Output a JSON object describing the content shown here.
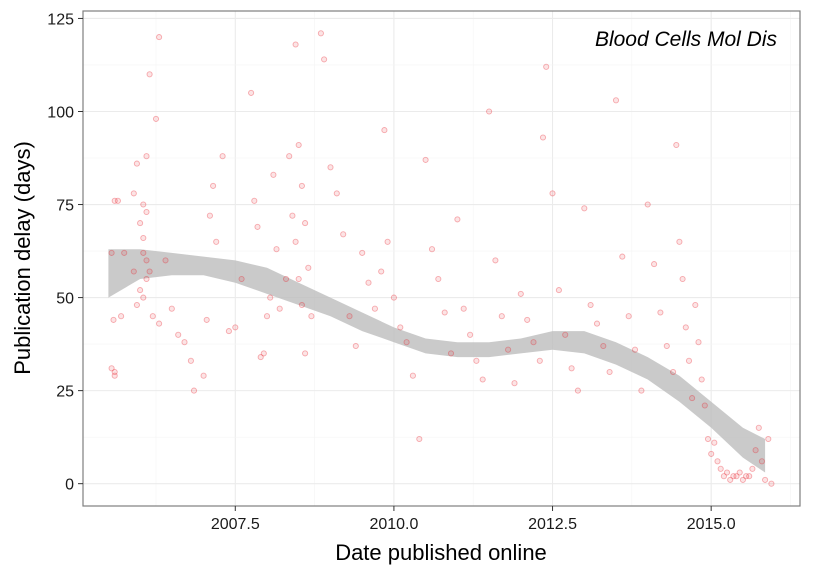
{
  "chart_data": {
    "type": "scatter",
    "annotation": "Blood Cells Mol Dis",
    "xlabel": "Date published online",
    "ylabel": "Publication delay (days)",
    "xlim": [
      2005.1,
      2016.4
    ],
    "ylim": [
      -6,
      127
    ],
    "x_ticks": [
      2007.5,
      2010.0,
      2012.5,
      2015.0
    ],
    "x_tick_labels": [
      "2007.5",
      "2010.0",
      "2012.5",
      "2015.0"
    ],
    "y_ticks": [
      0,
      25,
      50,
      75,
      100,
      125
    ],
    "y_tick_labels": [
      "0",
      "25",
      "50",
      "75",
      "100",
      "125"
    ],
    "grid": true,
    "point_color": "#e8202a",
    "band_color": "#bdbdbd",
    "smooth_band": {
      "x": [
        2005.5,
        2006.0,
        2006.5,
        2007.0,
        2007.5,
        2008.0,
        2008.5,
        2009.0,
        2009.5,
        2010.0,
        2010.5,
        2011.0,
        2011.5,
        2012.0,
        2012.5,
        2013.0,
        2013.5,
        2014.0,
        2014.5,
        2015.0,
        2015.5,
        2015.85
      ],
      "upper": [
        63,
        63,
        62,
        61,
        60,
        58,
        54,
        50,
        46,
        42,
        39,
        38,
        38,
        39,
        41,
        41,
        38,
        34,
        29,
        22,
        15,
        12
      ],
      "lower": [
        50,
        55,
        56,
        56,
        54,
        51,
        48,
        45,
        41,
        38,
        35,
        34,
        34,
        35,
        36,
        35,
        32,
        28,
        22,
        15,
        7,
        3
      ]
    },
    "points": [
      [
        2005.55,
        62
      ],
      [
        2005.6,
        76
      ],
      [
        2005.65,
        76
      ],
      [
        2005.6,
        30
      ],
      [
        2005.55,
        31
      ],
      [
        2005.6,
        29
      ],
      [
        2005.58,
        44
      ],
      [
        2005.7,
        45
      ],
      [
        2005.75,
        62
      ],
      [
        2005.9,
        57
      ],
      [
        2005.9,
        78
      ],
      [
        2005.95,
        86
      ],
      [
        2006.0,
        70
      ],
      [
        2006.05,
        75
      ],
      [
        2006.1,
        73
      ],
      [
        2006.1,
        88
      ],
      [
        2006.15,
        110
      ],
      [
        2006.3,
        120
      ],
      [
        2006.25,
        98
      ],
      [
        2006.05,
        66
      ],
      [
        2006.05,
        62
      ],
      [
        2006.1,
        60
      ],
      [
        2006.15,
        57
      ],
      [
        2006.1,
        55
      ],
      [
        2006.0,
        52
      ],
      [
        2006.05,
        50
      ],
      [
        2005.95,
        48
      ],
      [
        2006.2,
        45
      ],
      [
        2006.3,
        43
      ],
      [
        2006.4,
        60
      ],
      [
        2006.5,
        47
      ],
      [
        2006.6,
        40
      ],
      [
        2006.7,
        38
      ],
      [
        2006.8,
        33
      ],
      [
        2006.85,
        25
      ],
      [
        2007.0,
        29
      ],
      [
        2007.05,
        44
      ],
      [
        2007.1,
        72
      ],
      [
        2007.15,
        80
      ],
      [
        2007.2,
        65
      ],
      [
        2007.3,
        88
      ],
      [
        2007.4,
        41
      ],
      [
        2007.5,
        42
      ],
      [
        2007.6,
        55
      ],
      [
        2007.75,
        105
      ],
      [
        2007.8,
        76
      ],
      [
        2007.9,
        34
      ],
      [
        2007.95,
        35
      ],
      [
        2008.0,
        45
      ],
      [
        2007.85,
        69
      ],
      [
        2008.05,
        50
      ],
      [
        2008.1,
        83
      ],
      [
        2008.15,
        63
      ],
      [
        2008.2,
        47
      ],
      [
        2008.3,
        55
      ],
      [
        2008.35,
        88
      ],
      [
        2008.4,
        72
      ],
      [
        2008.45,
        65
      ],
      [
        2008.5,
        55
      ],
      [
        2008.55,
        48
      ],
      [
        2008.6,
        35
      ],
      [
        2008.45,
        118
      ],
      [
        2008.5,
        91
      ],
      [
        2008.55,
        80
      ],
      [
        2008.6,
        70
      ],
      [
        2008.65,
        58
      ],
      [
        2008.7,
        45
      ],
      [
        2008.85,
        121
      ],
      [
        2008.9,
        114
      ],
      [
        2009.0,
        85
      ],
      [
        2009.1,
        78
      ],
      [
        2009.2,
        67
      ],
      [
        2009.3,
        45
      ],
      [
        2009.4,
        37
      ],
      [
        2009.5,
        62
      ],
      [
        2009.6,
        54
      ],
      [
        2009.7,
        47
      ],
      [
        2009.8,
        57
      ],
      [
        2009.85,
        95
      ],
      [
        2009.9,
        65
      ],
      [
        2010.0,
        50
      ],
      [
        2010.1,
        42
      ],
      [
        2010.2,
        38
      ],
      [
        2010.3,
        29
      ],
      [
        2010.4,
        12
      ],
      [
        2010.5,
        87
      ],
      [
        2010.6,
        63
      ],
      [
        2010.7,
        55
      ],
      [
        2010.8,
        46
      ],
      [
        2010.9,
        35
      ],
      [
        2011.0,
        71
      ],
      [
        2011.1,
        47
      ],
      [
        2011.2,
        40
      ],
      [
        2011.3,
        33
      ],
      [
        2011.4,
        28
      ],
      [
        2011.5,
        100
      ],
      [
        2011.6,
        60
      ],
      [
        2011.7,
        45
      ],
      [
        2011.8,
        36
      ],
      [
        2011.9,
        27
      ],
      [
        2012.0,
        51
      ],
      [
        2012.1,
        44
      ],
      [
        2012.2,
        38
      ],
      [
        2012.3,
        33
      ],
      [
        2012.35,
        93
      ],
      [
        2012.4,
        112
      ],
      [
        2012.5,
        78
      ],
      [
        2012.6,
        52
      ],
      [
        2012.7,
        40
      ],
      [
        2012.8,
        31
      ],
      [
        2012.9,
        25
      ],
      [
        2013.0,
        74
      ],
      [
        2013.1,
        48
      ],
      [
        2013.2,
        43
      ],
      [
        2013.3,
        37
      ],
      [
        2013.4,
        30
      ],
      [
        2013.5,
        103
      ],
      [
        2013.6,
        61
      ],
      [
        2013.7,
        45
      ],
      [
        2013.8,
        36
      ],
      [
        2013.9,
        25
      ],
      [
        2014.0,
        75
      ],
      [
        2014.1,
        59
      ],
      [
        2014.2,
        46
      ],
      [
        2014.3,
        37
      ],
      [
        2014.4,
        30
      ],
      [
        2014.45,
        91
      ],
      [
        2014.5,
        65
      ],
      [
        2014.55,
        55
      ],
      [
        2014.6,
        42
      ],
      [
        2014.65,
        33
      ],
      [
        2014.7,
        23
      ],
      [
        2014.75,
        48
      ],
      [
        2014.8,
        38
      ],
      [
        2014.85,
        28
      ],
      [
        2014.9,
        21
      ],
      [
        2014.95,
        12
      ],
      [
        2015.0,
        8
      ],
      [
        2015.05,
        11
      ],
      [
        2015.1,
        6
      ],
      [
        2015.15,
        4
      ],
      [
        2015.2,
        2
      ],
      [
        2015.25,
        3
      ],
      [
        2015.3,
        1
      ],
      [
        2015.35,
        2
      ],
      [
        2015.4,
        2
      ],
      [
        2015.45,
        3
      ],
      [
        2015.5,
        1
      ],
      [
        2015.55,
        2
      ],
      [
        2015.6,
        2
      ],
      [
        2015.65,
        4
      ],
      [
        2015.7,
        9
      ],
      [
        2015.75,
        15
      ],
      [
        2015.8,
        6
      ],
      [
        2015.85,
        1
      ],
      [
        2015.9,
        12
      ],
      [
        2015.95,
        0
      ]
    ]
  }
}
